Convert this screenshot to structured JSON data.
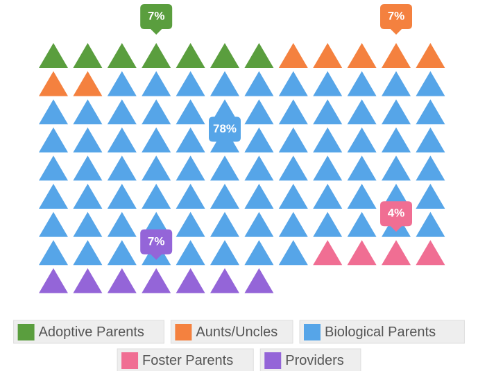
{
  "chart_data": {
    "type": "pictogram",
    "categories": [
      "Adoptive Parents",
      "Aunts/Uncles",
      "Biological Parents",
      "Foster Parents",
      "Providers"
    ],
    "values": [
      7,
      7,
      78,
      4,
      7
    ],
    "value_labels": [
      "7%",
      "7%",
      "78%",
      "4%",
      "7%"
    ],
    "colors": [
      "#5a9e3e",
      "#f4813f",
      "#56a5e8",
      "#f06e93",
      "#9465d8"
    ]
  }
}
